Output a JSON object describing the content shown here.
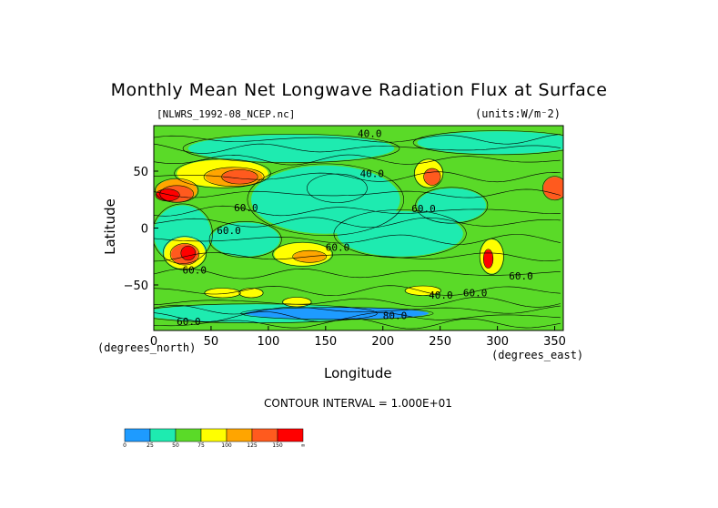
{
  "chart_data": {
    "type": "heatmap",
    "title": "Monthly Mean Net Longwave Radiation Flux at Surface",
    "file_label": "[NLWRS_1992-08_NCEP.nc]",
    "units_label": "(units:W/m⁻2)",
    "xlabel": "Longitude",
    "ylabel": "Latitude",
    "x_units": "(degrees_east)",
    "y_units": "(degrees_north)",
    "xlim": [
      0,
      357.5
    ],
    "ylim": [
      -90,
      90
    ],
    "x_ticks": [
      "0",
      "50",
      "100",
      "150",
      "200",
      "250",
      "300",
      "350"
    ],
    "y_ticks": [
      "50",
      "0",
      "−50"
    ],
    "contour_interval_label": "CONTOUR INTERVAL = 1.000E+01",
    "contour_labels": [
      "40.0",
      "40.0",
      "60.0",
      "60.0",
      "60.0",
      "60.0",
      "60.0",
      "40.0",
      "60.0",
      "60.0",
      "80.0",
      "60.0"
    ],
    "colorbar": {
      "levels": [
        "0",
        "25",
        "50",
        "75",
        "100",
        "125",
        "150",
        "∞"
      ],
      "colors": [
        "#1e9bff",
        "#1eebb0",
        "#5ada28",
        "#ffff00",
        "#ffa500",
        "#ff5a1e",
        "#ff0000"
      ]
    }
  }
}
